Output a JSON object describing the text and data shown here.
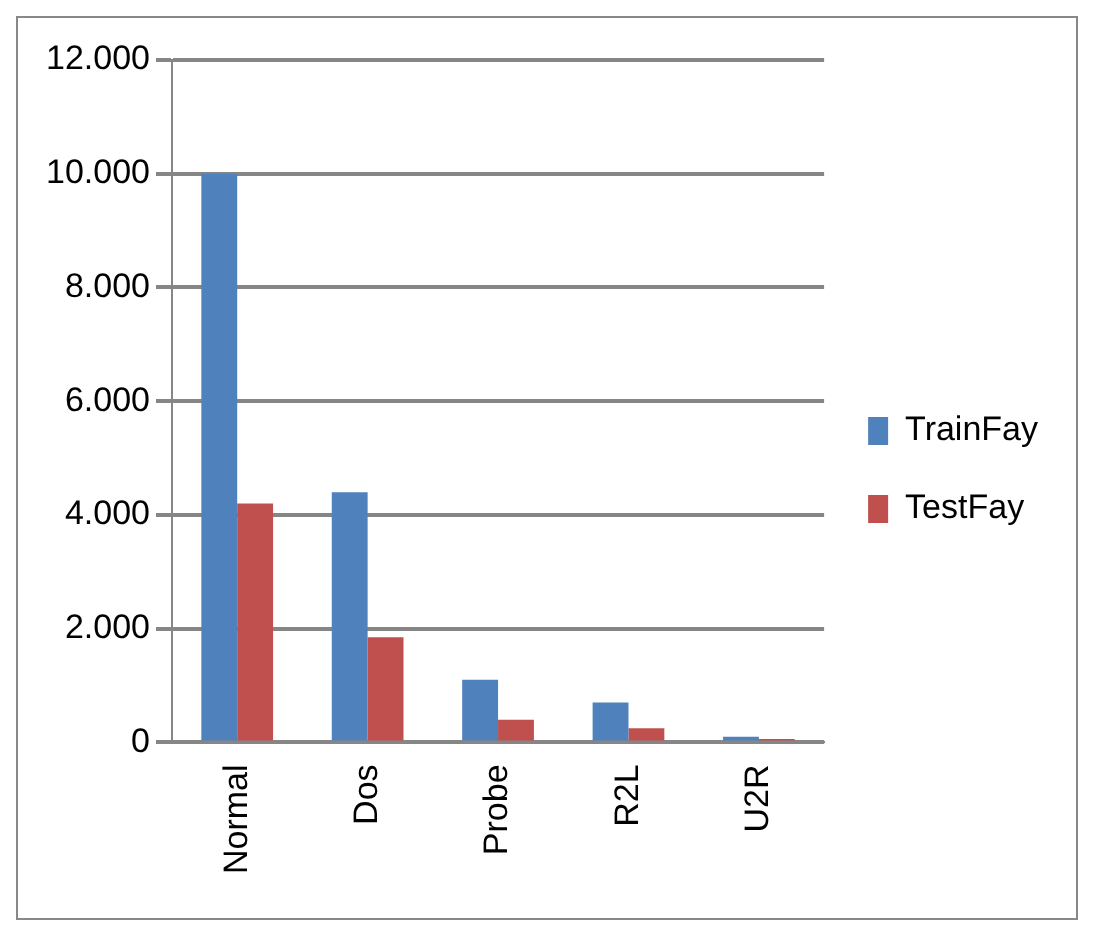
{
  "chart_data": {
    "type": "bar",
    "categories": [
      "Normal",
      "Dos",
      "Probe",
      "R2L",
      "U2R"
    ],
    "series": [
      {
        "name": "TrainFay",
        "color": "#4f81bd",
        "values": [
          10000,
          4400,
          1100,
          700,
          100
        ]
      },
      {
        "name": "TestFay",
        "color": "#c0504d",
        "values": [
          4200,
          1850,
          400,
          250,
          60
        ]
      }
    ],
    "ylim": [
      0,
      12000
    ],
    "yticks": [
      {
        "value": 0,
        "label": "0"
      },
      {
        "value": 2000,
        "label": "2.000"
      },
      {
        "value": 4000,
        "label": "4.000"
      },
      {
        "value": 6000,
        "label": "6.000"
      },
      {
        "value": 8000,
        "label": "8.000"
      },
      {
        "value": 10000,
        "label": "10.000"
      },
      {
        "value": 12000,
        "label": "12.000"
      }
    ],
    "grid": "y",
    "legend": "right"
  }
}
